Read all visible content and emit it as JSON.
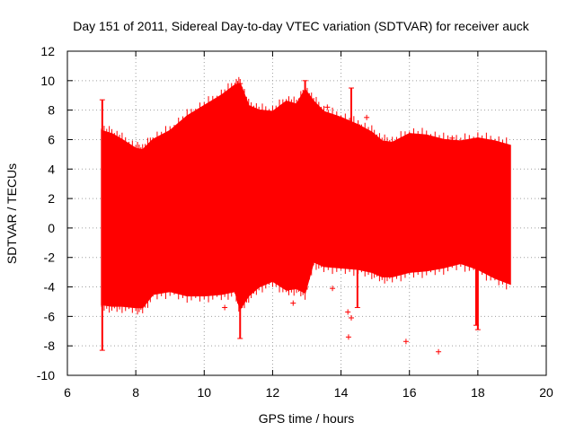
{
  "chart_data": {
    "type": "area",
    "title": "Day 151 of 2011, Sidereal Day-to-day VTEC variation (SDTVAR) for receiver auck",
    "xlabel": "GPS time / hours",
    "ylabel": "SDTVAR / TECUs",
    "xlim": [
      6,
      20
    ],
    "ylim": [
      -10,
      12
    ],
    "x_ticks": [
      6,
      8,
      10,
      12,
      14,
      16,
      18,
      20
    ],
    "y_ticks": [
      -10,
      -8,
      -6,
      -4,
      -2,
      0,
      2,
      4,
      6,
      8,
      10,
      12
    ],
    "x_tick_labels": [
      "6",
      "8",
      "10",
      "12",
      "14",
      "16",
      "18",
      "20"
    ],
    "y_tick_labels": [
      "-10",
      "-8",
      "-6",
      "-4",
      "-2",
      "0",
      "2",
      "4",
      "6",
      "8",
      "10",
      "12"
    ],
    "grid": true,
    "series_color": "#ff0000",
    "series": [
      {
        "name": "SDTVAR",
        "x": [
          7.0,
          7.3,
          7.6,
          8.0,
          8.2,
          8.5,
          9.0,
          9.5,
          10.0,
          10.5,
          10.9,
          11.05,
          11.3,
          11.6,
          12.0,
          12.4,
          12.7,
          12.95,
          13.2,
          13.5,
          14.0,
          14.5,
          14.9,
          15.2,
          15.5,
          16.0,
          16.5,
          17.0,
          17.5,
          18.0,
          18.5,
          18.95
        ],
        "upper": [
          6.6,
          6.4,
          6.0,
          5.4,
          5.3,
          6.0,
          6.6,
          7.6,
          8.3,
          9.0,
          9.7,
          9.8,
          8.3,
          8.0,
          7.9,
          8.6,
          8.4,
          9.4,
          8.6,
          7.9,
          7.5,
          7.0,
          6.5,
          5.9,
          5.8,
          6.4,
          6.3,
          6.0,
          5.9,
          6.1,
          5.9,
          5.6
        ],
        "lower": [
          -5.2,
          -5.3,
          -5.3,
          -5.4,
          -5.4,
          -4.5,
          -4.3,
          -4.6,
          -4.6,
          -4.5,
          -4.3,
          -5.5,
          -4.6,
          -4.0,
          -3.6,
          -4.2,
          -4.1,
          -4.4,
          -2.3,
          -2.6,
          -2.7,
          -2.8,
          -3.0,
          -3.3,
          -3.3,
          -3.0,
          -2.9,
          -2.7,
          -2.4,
          -2.8,
          -3.4,
          -3.8
        ]
      }
    ],
    "spikes": [
      {
        "x": 7.02,
        "y1": -8.3,
        "y2": 8.7
      },
      {
        "x": 11.05,
        "y1": -7.5,
        "y2": 9.8
      },
      {
        "x": 12.95,
        "y1": -2.0,
        "y2": 10.0
      },
      {
        "x": 14.3,
        "y1": -2.5,
        "y2": 9.5
      },
      {
        "x": 14.48,
        "y1": -5.4,
        "y2": 7.0
      },
      {
        "x": 17.95,
        "y1": -6.6,
        "y2": 5.5
      },
      {
        "x": 18.0,
        "y1": -6.9,
        "y2": 5.8
      }
    ],
    "outliers": [
      {
        "x": 10.6,
        "y": -5.4
      },
      {
        "x": 12.45,
        "y": -4.1
      },
      {
        "x": 12.6,
        "y": -5.1
      },
      {
        "x": 13.1,
        "y": -1.3
      },
      {
        "x": 13.75,
        "y": -4.1
      },
      {
        "x": 14.2,
        "y": -5.7
      },
      {
        "x": 14.3,
        "y": -6.1
      },
      {
        "x": 14.22,
        "y": -7.4
      },
      {
        "x": 15.9,
        "y": -7.7
      },
      {
        "x": 16.85,
        "y": -8.4
      },
      {
        "x": 17.25,
        "y": 6.1
      },
      {
        "x": 13.6,
        "y": 8.2
      },
      {
        "x": 14.75,
        "y": 7.5
      }
    ]
  }
}
